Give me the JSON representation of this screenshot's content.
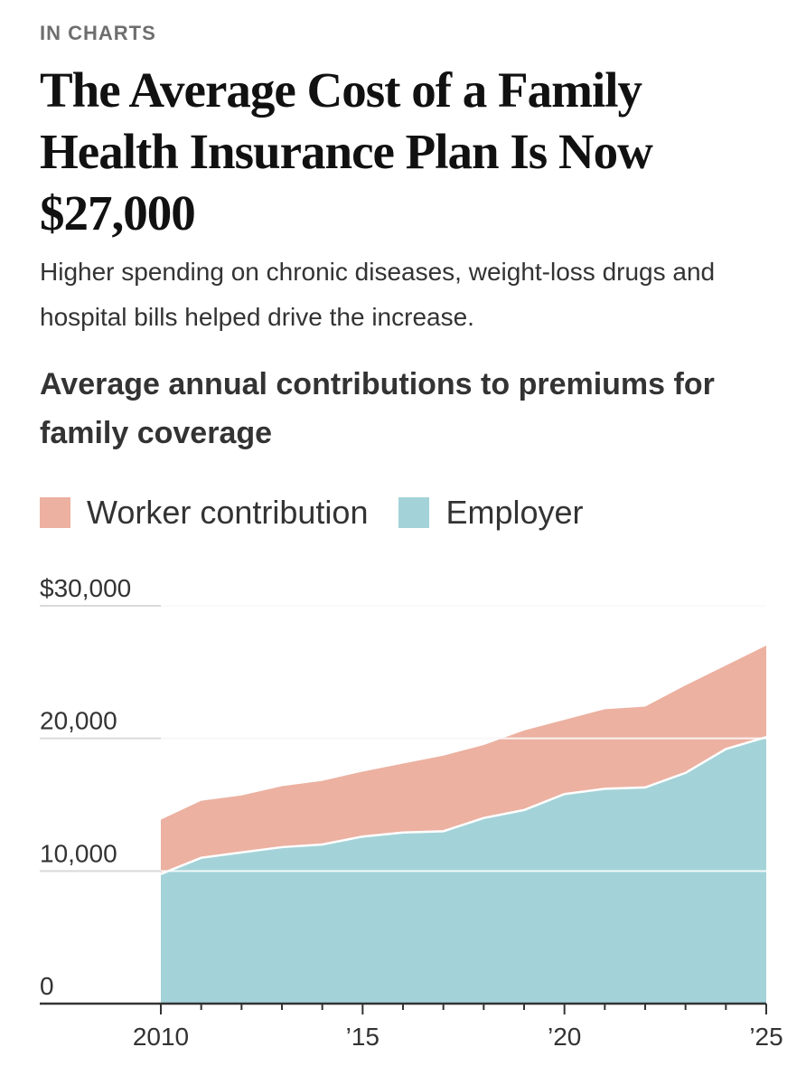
{
  "header": {
    "eyebrow": "IN CHARTS",
    "title": "The Average Cost of a Family Health Insurance Plan Is Now $27,000",
    "subtitle": "Higher spending on chronic diseases, weight-loss drugs and hospital bills helped drive the increase."
  },
  "colors": {
    "worker": "#ecb1a1",
    "employer": "#a3d3d8",
    "grid": "#d9d9d9",
    "axis": "#333333"
  },
  "chart_data": {
    "type": "area",
    "stacked": true,
    "title": "Average annual contributions to premiums for family coverage",
    "x": [
      2010,
      2011,
      2012,
      2013,
      2014,
      2015,
      2016,
      2017,
      2018,
      2019,
      2020,
      2021,
      2022,
      2023,
      2024,
      2025
    ],
    "series": [
      {
        "name": "Employer",
        "key": "employer",
        "values": [
          9773,
          11000,
          11400,
          11800,
          12000,
          12600,
          12900,
          13000,
          14000,
          14600,
          15800,
          16200,
          16300,
          17400,
          19200,
          20100
        ]
      },
      {
        "name": "Worker contribution",
        "key": "worker",
        "values": [
          4100,
          4300,
          4300,
          4600,
          4800,
          4900,
          5200,
          5700,
          5500,
          6000,
          5600,
          6000,
          6100,
          6600,
          6300,
          6900
        ]
      }
    ],
    "legend": [
      "Worker contribution",
      "Employer"
    ],
    "legend_position": "top-left",
    "ylim": [
      0,
      30000
    ],
    "y_ticks": [
      {
        "value": 30000,
        "label": "$30,000"
      },
      {
        "value": 20000,
        "label": "20,000"
      },
      {
        "value": 10000,
        "label": "10,000"
      },
      {
        "value": 0,
        "label": "0"
      }
    ],
    "xlim": [
      2007,
      2025
    ],
    "x_ticks": [
      {
        "value": 2010,
        "label": "2010"
      },
      {
        "value": 2015,
        "label": "’15"
      },
      {
        "value": 2020,
        "label": "’20"
      },
      {
        "value": 2025,
        "label": "’25"
      }
    ],
    "grid": true
  }
}
